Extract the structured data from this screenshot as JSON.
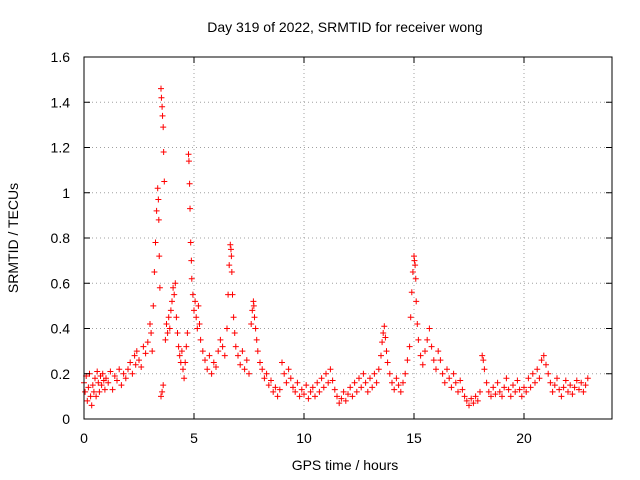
{
  "chart_data": {
    "type": "scatter",
    "title": "Day 319 of 2022, SRMTID for receiver wong",
    "xlabel": "GPS time / hours",
    "ylabel": "SRMTID / TECUs",
    "xlim": [
      0,
      24
    ],
    "ylim": [
      0,
      1.6
    ],
    "xticks": [
      0,
      5,
      10,
      15,
      20
    ],
    "xtick_labels": [
      "0",
      "5",
      "10",
      "15",
      "20"
    ],
    "yticks": [
      0,
      0.2,
      0.4,
      0.6,
      0.8,
      1,
      1.2,
      1.4,
      1.6
    ],
    "ytick_labels": [
      "0",
      "0.2",
      "0.4",
      "0.6",
      "0.8",
      "1",
      "1.2",
      "1.4",
      "1.6"
    ],
    "grid": true,
    "marker": "+",
    "color": "#ff0000",
    "series": [
      {
        "name": "SRMTID",
        "points": [
          [
            0.0,
            0.16
          ],
          [
            0.05,
            0.12
          ],
          [
            0.1,
            0.19
          ],
          [
            0.15,
            0.08
          ],
          [
            0.2,
            0.14
          ],
          [
            0.25,
            0.2
          ],
          [
            0.3,
            0.1
          ],
          [
            0.35,
            0.06
          ],
          [
            0.4,
            0.15
          ],
          [
            0.45,
            0.12
          ],
          [
            0.5,
            0.18
          ],
          [
            0.55,
            0.1
          ],
          [
            0.6,
            0.21
          ],
          [
            0.65,
            0.16
          ],
          [
            0.7,
            0.12
          ],
          [
            0.75,
            0.19
          ],
          [
            0.8,
            0.15
          ],
          [
            0.85,
            0.2
          ],
          [
            0.9,
            0.17
          ],
          [
            0.95,
            0.13
          ],
          [
            1.0,
            0.18
          ],
          [
            1.1,
            0.16
          ],
          [
            1.2,
            0.21
          ],
          [
            1.3,
            0.13
          ],
          [
            1.4,
            0.19
          ],
          [
            1.5,
            0.17
          ],
          [
            1.6,
            0.22
          ],
          [
            1.7,
            0.15
          ],
          [
            1.8,
            0.2
          ],
          [
            1.9,
            0.18
          ],
          [
            2.0,
            0.22
          ],
          [
            2.1,
            0.25
          ],
          [
            2.2,
            0.2
          ],
          [
            2.3,
            0.28
          ],
          [
            2.35,
            0.24
          ],
          [
            2.4,
            0.3
          ],
          [
            2.5,
            0.26
          ],
          [
            2.6,
            0.23
          ],
          [
            2.7,
            0.32
          ],
          [
            2.8,
            0.29
          ],
          [
            2.9,
            0.34
          ],
          [
            3.0,
            0.42
          ],
          [
            3.05,
            0.38
          ],
          [
            3.1,
            0.3
          ],
          [
            3.15,
            0.5
          ],
          [
            3.2,
            0.65
          ],
          [
            3.25,
            0.78
          ],
          [
            3.3,
            0.92
          ],
          [
            3.35,
            1.02
          ],
          [
            3.38,
            0.97
          ],
          [
            3.4,
            0.88
          ],
          [
            3.42,
            0.72
          ],
          [
            3.45,
            0.58
          ],
          [
            3.5,
            1.46
          ],
          [
            3.52,
            1.42
          ],
          [
            3.55,
            1.38
          ],
          [
            3.57,
            1.34
          ],
          [
            3.6,
            1.29
          ],
          [
            3.62,
            1.18
          ],
          [
            3.65,
            1.05
          ],
          [
            3.5,
            0.1
          ],
          [
            3.55,
            0.12
          ],
          [
            3.6,
            0.15
          ],
          [
            3.7,
            0.35
          ],
          [
            3.75,
            0.42
          ],
          [
            3.8,
            0.38
          ],
          [
            3.85,
            0.45
          ],
          [
            3.9,
            0.4
          ],
          [
            3.95,
            0.48
          ],
          [
            4.0,
            0.52
          ],
          [
            4.05,
            0.58
          ],
          [
            4.1,
            0.55
          ],
          [
            4.15,
            0.6
          ],
          [
            4.2,
            0.45
          ],
          [
            4.25,
            0.38
          ],
          [
            4.3,
            0.32
          ],
          [
            4.35,
            0.28
          ],
          [
            4.4,
            0.25
          ],
          [
            4.45,
            0.3
          ],
          [
            4.5,
            0.22
          ],
          [
            4.55,
            0.18
          ],
          [
            4.6,
            0.25
          ],
          [
            4.65,
            0.32
          ],
          [
            4.7,
            0.38
          ],
          [
            4.75,
            1.17
          ],
          [
            4.77,
            1.14
          ],
          [
            4.8,
            1.04
          ],
          [
            4.82,
            0.93
          ],
          [
            4.85,
            0.78
          ],
          [
            4.88,
            0.7
          ],
          [
            4.9,
            0.62
          ],
          [
            4.95,
            0.55
          ],
          [
            5.0,
            0.48
          ],
          [
            5.05,
            0.52
          ],
          [
            5.1,
            0.45
          ],
          [
            5.15,
            0.4
          ],
          [
            5.2,
            0.5
          ],
          [
            5.25,
            0.42
          ],
          [
            5.3,
            0.35
          ],
          [
            5.4,
            0.3
          ],
          [
            5.5,
            0.26
          ],
          [
            5.6,
            0.22
          ],
          [
            5.7,
            0.28
          ],
          [
            5.8,
            0.2
          ],
          [
            5.9,
            0.25
          ],
          [
            6.0,
            0.23
          ],
          [
            6.1,
            0.3
          ],
          [
            6.2,
            0.35
          ],
          [
            6.3,
            0.32
          ],
          [
            6.4,
            0.28
          ],
          [
            6.5,
            0.4
          ],
          [
            6.55,
            0.55
          ],
          [
            6.6,
            0.68
          ],
          [
            6.65,
            0.77
          ],
          [
            6.68,
            0.75
          ],
          [
            6.7,
            0.72
          ],
          [
            6.72,
            0.65
          ],
          [
            6.75,
            0.55
          ],
          [
            6.8,
            0.45
          ],
          [
            6.85,
            0.38
          ],
          [
            6.9,
            0.32
          ],
          [
            7.0,
            0.28
          ],
          [
            7.1,
            0.24
          ],
          [
            7.2,
            0.3
          ],
          [
            7.3,
            0.22
          ],
          [
            7.4,
            0.26
          ],
          [
            7.5,
            0.2
          ],
          [
            7.6,
            0.42
          ],
          [
            7.65,
            0.48
          ],
          [
            7.7,
            0.52
          ],
          [
            7.72,
            0.5
          ],
          [
            7.75,
            0.45
          ],
          [
            7.8,
            0.4
          ],
          [
            7.85,
            0.35
          ],
          [
            7.9,
            0.3
          ],
          [
            8.0,
            0.25
          ],
          [
            8.1,
            0.22
          ],
          [
            8.2,
            0.18
          ],
          [
            8.3,
            0.2
          ],
          [
            8.4,
            0.15
          ],
          [
            8.5,
            0.17
          ],
          [
            8.6,
            0.12
          ],
          [
            8.7,
            0.14
          ],
          [
            8.8,
            0.1
          ],
          [
            8.9,
            0.13
          ],
          [
            9.0,
            0.25
          ],
          [
            9.1,
            0.2
          ],
          [
            9.2,
            0.16
          ],
          [
            9.3,
            0.22
          ],
          [
            9.4,
            0.18
          ],
          [
            9.5,
            0.14
          ],
          [
            9.6,
            0.12
          ],
          [
            9.7,
            0.16
          ],
          [
            9.8,
            0.1
          ],
          [
            9.9,
            0.13
          ],
          [
            10.0,
            0.11
          ],
          [
            10.1,
            0.15
          ],
          [
            10.2,
            0.09
          ],
          [
            10.3,
            0.12
          ],
          [
            10.4,
            0.14
          ],
          [
            10.5,
            0.1
          ],
          [
            10.6,
            0.16
          ],
          [
            10.7,
            0.12
          ],
          [
            10.8,
            0.18
          ],
          [
            10.9,
            0.14
          ],
          [
            11.0,
            0.2
          ],
          [
            11.1,
            0.16
          ],
          [
            11.2,
            0.22
          ],
          [
            11.3,
            0.17
          ],
          [
            11.4,
            0.13
          ],
          [
            11.5,
            0.1
          ],
          [
            11.6,
            0.07
          ],
          [
            11.7,
            0.09
          ],
          [
            11.8,
            0.12
          ],
          [
            11.9,
            0.08
          ],
          [
            12.0,
            0.11
          ],
          [
            12.1,
            0.14
          ],
          [
            12.2,
            0.1
          ],
          [
            12.3,
            0.16
          ],
          [
            12.4,
            0.12
          ],
          [
            12.5,
            0.18
          ],
          [
            12.6,
            0.14
          ],
          [
            12.7,
            0.2
          ],
          [
            12.8,
            0.16
          ],
          [
            12.9,
            0.12
          ],
          [
            13.0,
            0.18
          ],
          [
            13.1,
            0.14
          ],
          [
            13.2,
            0.2
          ],
          [
            13.3,
            0.16
          ],
          [
            13.4,
            0.22
          ],
          [
            13.5,
            0.28
          ],
          [
            13.55,
            0.34
          ],
          [
            13.6,
            0.38
          ],
          [
            13.65,
            0.41
          ],
          [
            13.7,
            0.36
          ],
          [
            13.75,
            0.3
          ],
          [
            13.8,
            0.25
          ],
          [
            13.9,
            0.2
          ],
          [
            14.0,
            0.16
          ],
          [
            14.1,
            0.13
          ],
          [
            14.2,
            0.18
          ],
          [
            14.3,
            0.15
          ],
          [
            14.4,
            0.12
          ],
          [
            14.5,
            0.16
          ],
          [
            14.6,
            0.2
          ],
          [
            14.7,
            0.26
          ],
          [
            14.8,
            0.32
          ],
          [
            14.85,
            0.45
          ],
          [
            14.9,
            0.56
          ],
          [
            14.95,
            0.65
          ],
          [
            15.0,
            0.72
          ],
          [
            15.02,
            0.7
          ],
          [
            15.05,
            0.68
          ],
          [
            15.08,
            0.62
          ],
          [
            15.1,
            0.52
          ],
          [
            15.15,
            0.42
          ],
          [
            15.2,
            0.35
          ],
          [
            15.3,
            0.28
          ],
          [
            15.4,
            0.24
          ],
          [
            15.5,
            0.3
          ],
          [
            15.6,
            0.35
          ],
          [
            15.7,
            0.4
          ],
          [
            15.8,
            0.32
          ],
          [
            15.9,
            0.26
          ],
          [
            16.0,
            0.22
          ],
          [
            16.1,
            0.3
          ],
          [
            16.2,
            0.26
          ],
          [
            16.3,
            0.2
          ],
          [
            16.4,
            0.16
          ],
          [
            16.5,
            0.22
          ],
          [
            16.6,
            0.18
          ],
          [
            16.7,
            0.14
          ],
          [
            16.8,
            0.2
          ],
          [
            16.9,
            0.16
          ],
          [
            17.0,
            0.12
          ],
          [
            17.1,
            0.17
          ],
          [
            17.2,
            0.13
          ],
          [
            17.3,
            0.1
          ],
          [
            17.4,
            0.08
          ],
          [
            17.5,
            0.06
          ],
          [
            17.6,
            0.09
          ],
          [
            17.7,
            0.07
          ],
          [
            17.8,
            0.1
          ],
          [
            17.9,
            0.08
          ],
          [
            18.0,
            0.12
          ],
          [
            18.1,
            0.28
          ],
          [
            18.15,
            0.26
          ],
          [
            18.2,
            0.22
          ],
          [
            18.3,
            0.16
          ],
          [
            18.4,
            0.12
          ],
          [
            18.5,
            0.1
          ],
          [
            18.6,
            0.14
          ],
          [
            18.7,
            0.11
          ],
          [
            18.8,
            0.16
          ],
          [
            18.9,
            0.12
          ],
          [
            19.0,
            0.1
          ],
          [
            19.1,
            0.14
          ],
          [
            19.2,
            0.18
          ],
          [
            19.3,
            0.13
          ],
          [
            19.4,
            0.1
          ],
          [
            19.5,
            0.15
          ],
          [
            19.6,
            0.12
          ],
          [
            19.7,
            0.17
          ],
          [
            19.8,
            0.13
          ],
          [
            19.9,
            0.1
          ],
          [
            20.0,
            0.14
          ],
          [
            20.1,
            0.12
          ],
          [
            20.2,
            0.18
          ],
          [
            20.3,
            0.14
          ],
          [
            20.4,
            0.2
          ],
          [
            20.5,
            0.16
          ],
          [
            20.6,
            0.22
          ],
          [
            20.7,
            0.18
          ],
          [
            20.8,
            0.26
          ],
          [
            20.9,
            0.28
          ],
          [
            21.0,
            0.24
          ],
          [
            21.1,
            0.2
          ],
          [
            21.2,
            0.16
          ],
          [
            21.3,
            0.12
          ],
          [
            21.4,
            0.15
          ],
          [
            21.5,
            0.18
          ],
          [
            21.6,
            0.13
          ],
          [
            21.7,
            0.1
          ],
          [
            21.8,
            0.14
          ],
          [
            21.9,
            0.17
          ],
          [
            22.0,
            0.12
          ],
          [
            22.1,
            0.15
          ],
          [
            22.2,
            0.11
          ],
          [
            22.3,
            0.14
          ],
          [
            22.4,
            0.17
          ],
          [
            22.5,
            0.13
          ],
          [
            22.6,
            0.16
          ],
          [
            22.7,
            0.12
          ],
          [
            22.8,
            0.15
          ],
          [
            22.9,
            0.18
          ]
        ]
      }
    ]
  }
}
